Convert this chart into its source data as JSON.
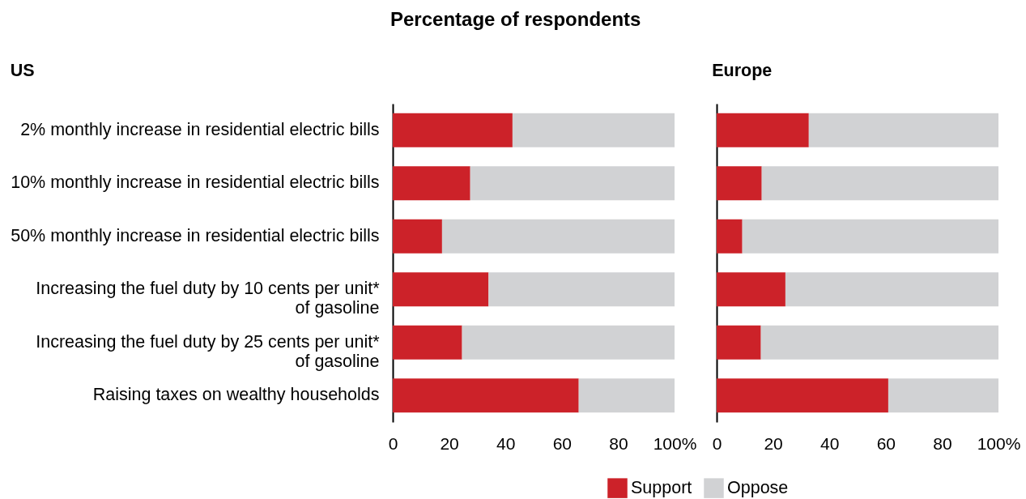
{
  "chart_data": [
    {
      "type": "bar",
      "orientation": "horizontal",
      "stacked": true,
      "title": "Percentage of respondents",
      "subtitle": "US",
      "categories": [
        "2% monthly increase in residential electric bills",
        "10% monthly increase in residential electric bills",
        "50% monthly increase in residential electric bills",
        "Increasing the fuel duty by 10 cents per unit* of gasoline",
        "Increasing the fuel duty by 25 cents per unit* of gasoline",
        "Raising taxes on wealthy households"
      ],
      "series": [
        {
          "name": "Support",
          "color": "#cc2229",
          "values": [
            42.5,
            27.5,
            17.5,
            34,
            24.6,
            66
          ]
        },
        {
          "name": "Oppose",
          "color": "#d1d2d4",
          "values": [
            57.5,
            72.5,
            82.5,
            66,
            75.4,
            34
          ]
        }
      ],
      "xlim": [
        0,
        100
      ],
      "xticks": [
        0,
        20,
        40,
        60,
        80,
        {
          "value": 100,
          "label": "100%"
        }
      ],
      "grid": false,
      "legend": "bottom"
    },
    {
      "type": "bar",
      "orientation": "horizontal",
      "stacked": true,
      "subtitle": "Europe",
      "categories": [
        null,
        null,
        null,
        null,
        null,
        null
      ],
      "series": [
        {
          "name": "Support",
          "color": "#cc2229",
          "values": [
            32.7,
            16,
            9.1,
            24.4,
            15.7,
            60.9
          ]
        },
        {
          "name": "Oppose",
          "color": "#d1d2d4",
          "values": [
            67.3,
            84,
            90.9,
            75.6,
            84.3,
            39.1
          ]
        }
      ],
      "xlim": [
        0,
        100
      ],
      "xticks": [
        0,
        20,
        40,
        60,
        80,
        {
          "value": 100,
          "label": "100%"
        }
      ],
      "grid": false,
      "legend": "bottom",
      "tick_labels": "x"
    }
  ]
}
